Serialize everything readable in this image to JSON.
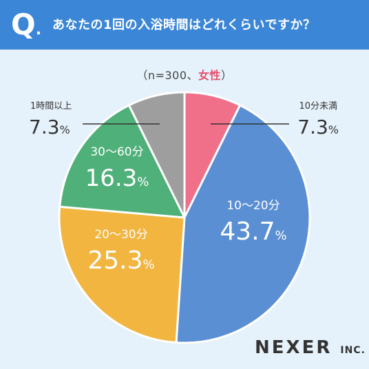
{
  "header": {
    "q_mark": "Q",
    "q_dot": ".",
    "question": "あなたの1回の入浴時間はどれくらいですか？"
  },
  "sample": {
    "prefix": "（n=300、",
    "highlight": "女性",
    "suffix": "）"
  },
  "brand": {
    "name": "NEXER",
    "suffix": "INC."
  },
  "chart_data": {
    "type": "pie",
    "unit": "%",
    "start": "top",
    "direction": "clockwise",
    "slices": [
      {
        "label": "10分未満",
        "value": 7.3,
        "color": "#f0708a"
      },
      {
        "label": "10～20分",
        "value": 43.7,
        "color": "#5b8fd3"
      },
      {
        "label": "20～30分",
        "value": 25.3,
        "color": "#f2b540"
      },
      {
        "label": "30～60分",
        "value": 16.3,
        "color": "#4fb07a"
      },
      {
        "label": "1時間以上",
        "value": 7.3,
        "color": "#9e9e9e"
      }
    ]
  }
}
